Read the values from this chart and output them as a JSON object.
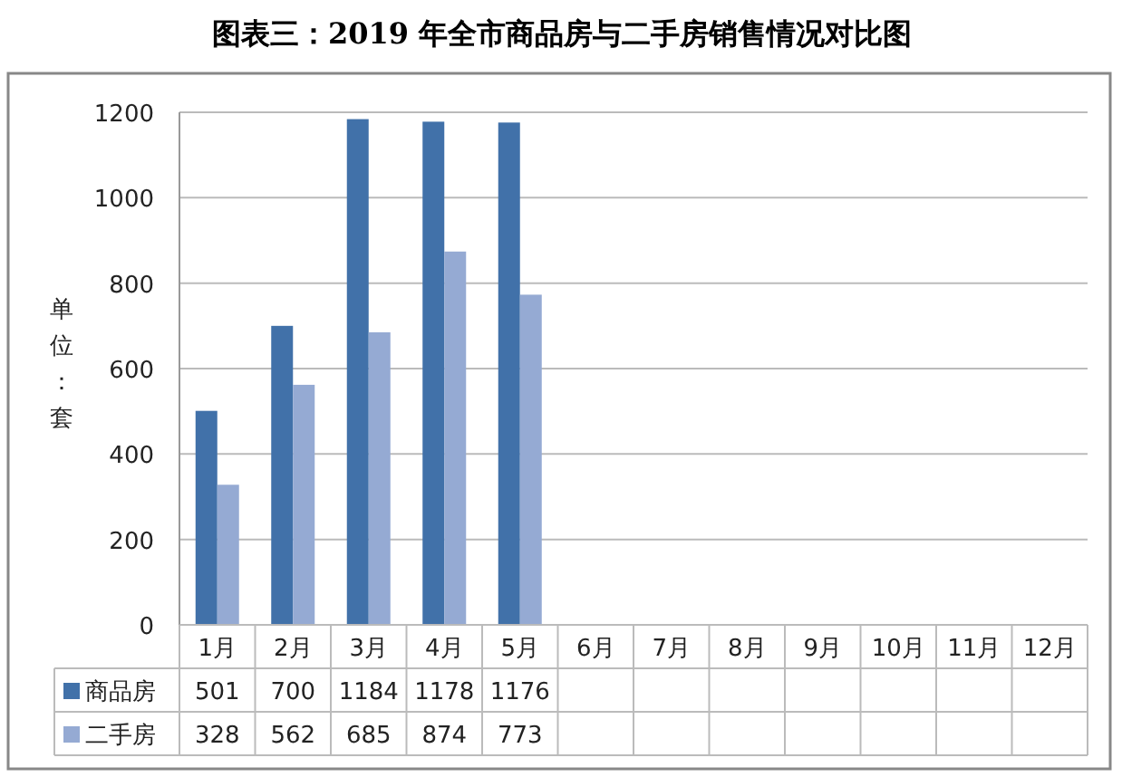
{
  "chart_data": {
    "type": "bar",
    "title": "图表三：2019 年全市商品房与二手房销售情况对比图",
    "ylabel": "单位：套",
    "categories": [
      "1月",
      "2月",
      "3月",
      "4月",
      "5月",
      "6月",
      "7月",
      "8月",
      "9月",
      "10月",
      "11月",
      "12月"
    ],
    "series": [
      {
        "name": "商品房",
        "color": "#4171a9",
        "values": [
          501,
          700,
          1184,
          1178,
          1176,
          null,
          null,
          null,
          null,
          null,
          null,
          null
        ]
      },
      {
        "name": "二手房",
        "color": "#95aad3",
        "values": [
          328,
          562,
          685,
          874,
          773,
          null,
          null,
          null,
          null,
          null,
          null,
          null
        ]
      }
    ],
    "ylim": [
      0,
      1200
    ],
    "yticks": [
      0,
      200,
      400,
      600,
      800,
      1000,
      1200
    ],
    "grid": "y",
    "legend": "bottom",
    "data_labels": true
  }
}
